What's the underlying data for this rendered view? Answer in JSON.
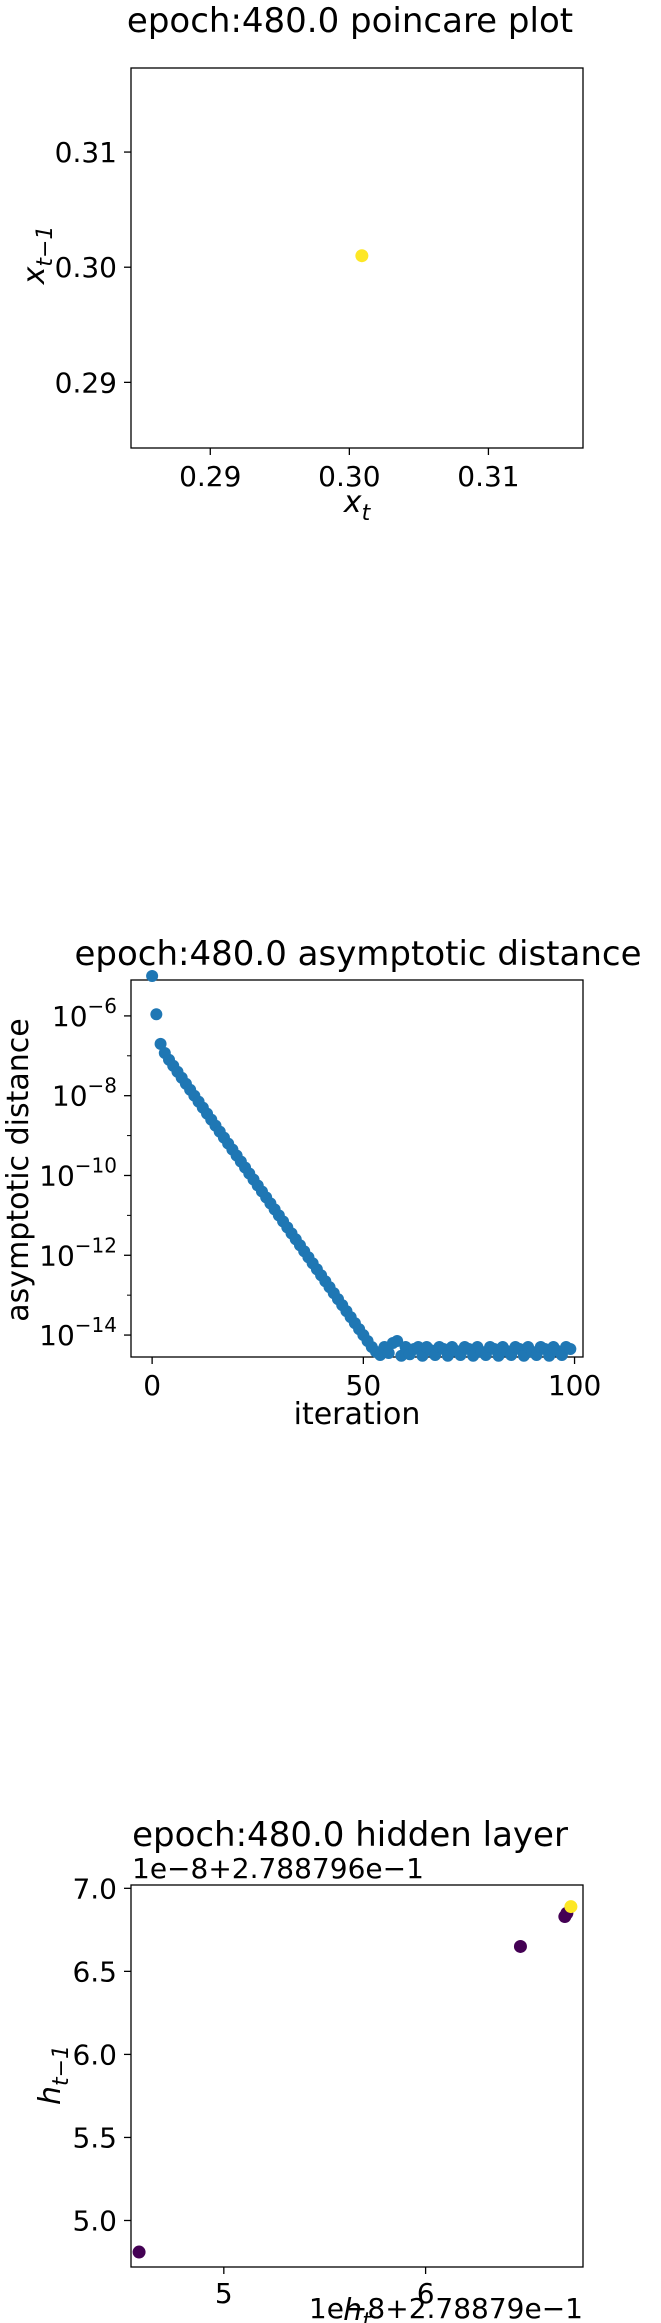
{
  "chart_data": [
    {
      "type": "scatter",
      "title": "epoch:480.0 poincare plot",
      "xlabel": "x_t",
      "ylabel": "x_{t−1}",
      "xlim": [
        0.2843,
        0.3168
      ],
      "ylim": [
        0.2843,
        0.3173
      ],
      "xticks": [
        0.29,
        0.3,
        0.31
      ],
      "xtick_labels": [
        "0.29",
        "0.30",
        "0.31"
      ],
      "yticks": [
        0.29,
        0.3,
        0.31
      ],
      "ytick_labels": [
        "0.29",
        "0.30",
        "0.31"
      ],
      "point_color": "#fde725",
      "points": [
        {
          "x": 0.3009,
          "y": 0.301
        }
      ],
      "grid": false
    },
    {
      "type": "scatter",
      "title": "epoch:480.0 asymptotic distance",
      "xlabel": "iteration",
      "ylabel": "asymptotic distance",
      "y_scale": "log",
      "xlim": [
        -5,
        102
      ],
      "ylim_log10": [
        -14.55,
        -5.1
      ],
      "xticks": [
        0,
        50,
        100
      ],
      "xtick_labels": [
        "0",
        "50",
        "100"
      ],
      "yticks_log10": [
        -6,
        -8,
        -10,
        -12,
        -14
      ],
      "ytick_labels": [
        {
          "base": "10",
          "exp": "−6"
        },
        {
          "base": "10",
          "exp": "−8"
        },
        {
          "base": "10",
          "exp": "−10"
        },
        {
          "base": "10",
          "exp": "−12"
        },
        {
          "base": "10",
          "exp": "−14"
        }
      ],
      "point_color": "#1f77b4",
      "x": [
        0,
        1,
        2,
        3,
        4,
        5,
        6,
        7,
        8,
        9,
        10,
        11,
        12,
        13,
        14,
        15,
        16,
        17,
        18,
        19,
        20,
        21,
        22,
        23,
        24,
        25,
        26,
        27,
        28,
        29,
        30,
        31,
        32,
        33,
        34,
        35,
        36,
        37,
        38,
        39,
        40,
        41,
        42,
        43,
        44,
        45,
        46,
        47,
        48,
        49,
        50,
        51,
        52,
        53,
        54,
        55,
        56,
        57,
        58,
        59,
        60,
        61,
        62,
        63,
        64,
        65,
        66,
        67,
        68,
        69,
        70,
        71,
        72,
        73,
        74,
        75,
        76,
        77,
        78,
        79,
        80,
        81,
        82,
        83,
        84,
        85,
        86,
        87,
        88,
        89,
        90,
        91,
        92,
        93,
        94,
        95,
        96,
        97,
        98,
        99
      ],
      "log10_y": [
        -5.0,
        -5.96,
        -6.7,
        -6.93,
        -7.1,
        -7.25,
        -7.4,
        -7.55,
        -7.7,
        -7.85,
        -8.0,
        -8.15,
        -8.3,
        -8.45,
        -8.6,
        -8.75,
        -8.9,
        -9.05,
        -9.2,
        -9.35,
        -9.5,
        -9.65,
        -9.8,
        -9.95,
        -10.1,
        -10.25,
        -10.4,
        -10.55,
        -10.7,
        -10.85,
        -11.0,
        -11.15,
        -11.3,
        -11.45,
        -11.6,
        -11.75,
        -11.9,
        -12.05,
        -12.2,
        -12.35,
        -12.5,
        -12.65,
        -12.8,
        -12.95,
        -13.1,
        -13.25,
        -13.4,
        -13.55,
        -13.7,
        -13.85,
        -14.0,
        -14.15,
        -14.3,
        -14.42,
        -14.5,
        -14.3,
        -14.45,
        -14.2,
        -14.15,
        -14.52,
        -14.3,
        -14.48,
        -14.35,
        -14.3,
        -14.52,
        -14.3,
        -14.38,
        -14.5,
        -14.3,
        -14.35,
        -14.52,
        -14.3,
        -14.4,
        -14.5,
        -14.3,
        -14.35,
        -14.52,
        -14.3,
        -14.42,
        -14.5,
        -14.3,
        -14.35,
        -14.52,
        -14.3,
        -14.4,
        -14.5,
        -14.3,
        -14.35,
        -14.52,
        -14.3,
        -14.42,
        -14.5,
        -14.3,
        -14.35,
        -14.52,
        -14.3,
        -14.4,
        -14.5,
        -14.3,
        -14.35
      ]
    },
    {
      "type": "scatter",
      "title": "epoch:480.0 hidden layer",
      "xlabel": "h_t",
      "ylabel": "h_{t−1}",
      "x_offset_text": "1e−8+2.78879e−1",
      "y_offset_text": "1e−8+2.788796e−1",
      "xlim": [
        4.54,
        6.78
      ],
      "ylim": [
        4.72,
        7.02
      ],
      "xticks": [
        5,
        6
      ],
      "xtick_labels": [
        "5",
        "6"
      ],
      "yticks": [
        5.0,
        5.5,
        6.0,
        6.5,
        7.0
      ],
      "ytick_labels": [
        "5.0",
        "5.5",
        "6.0",
        "6.5",
        "7.0"
      ],
      "colormap": [
        "#440154",
        "#fde725"
      ],
      "points": [
        {
          "x": 4.58,
          "y": 4.81,
          "c": 0
        },
        {
          "x": 6.47,
          "y": 6.65,
          "c": 0
        },
        {
          "x": 6.69,
          "y": 6.83,
          "c": 0
        },
        {
          "x": 6.7,
          "y": 6.85,
          "c": 0
        },
        {
          "x": 6.72,
          "y": 6.89,
          "c": 1
        }
      ]
    }
  ]
}
